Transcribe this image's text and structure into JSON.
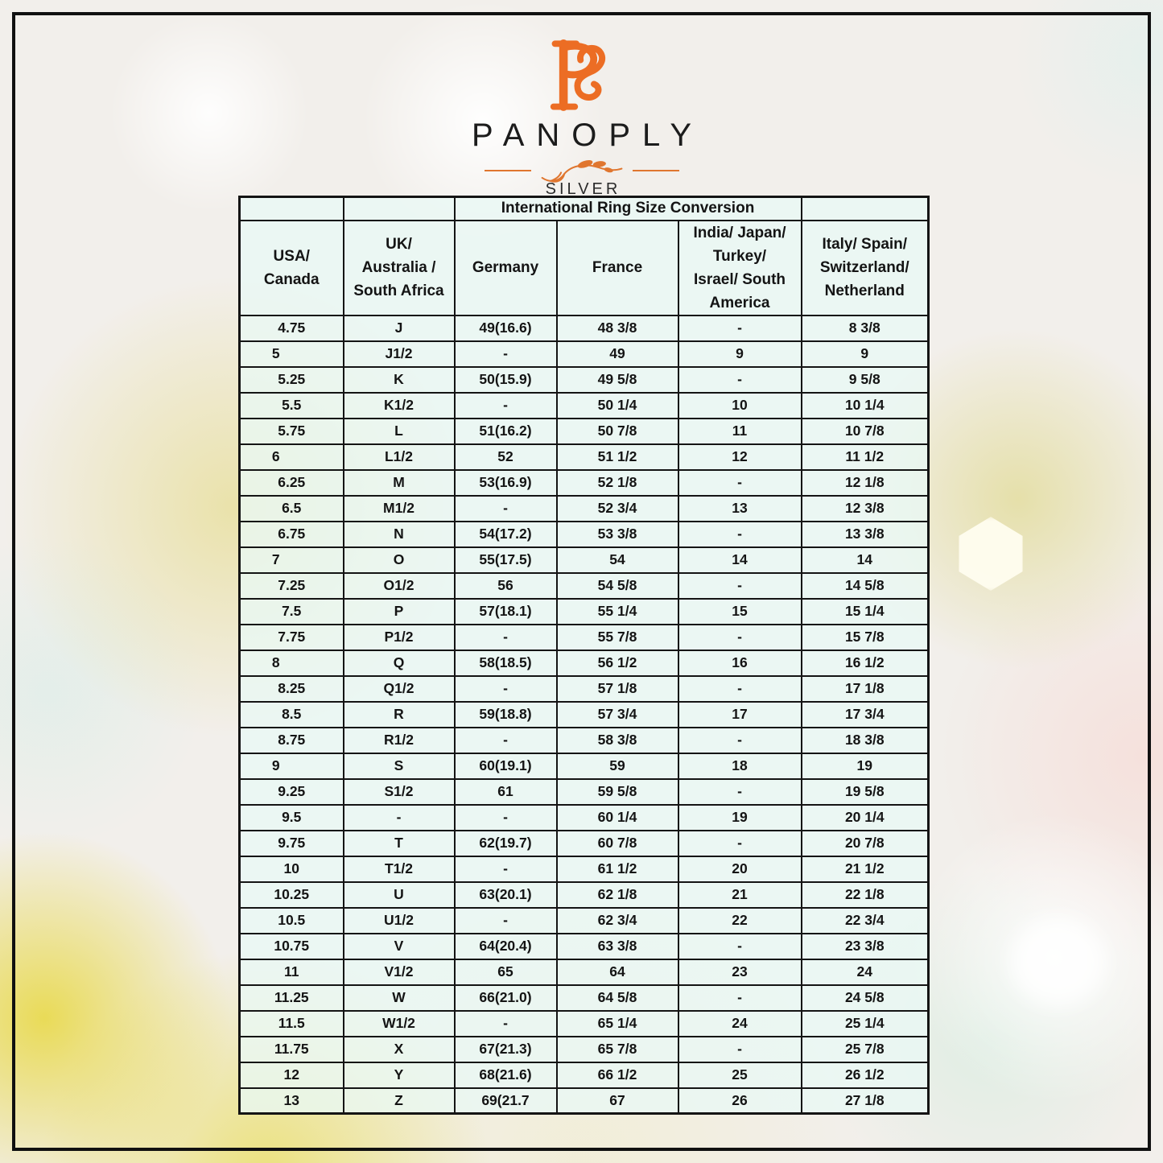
{
  "logo": {
    "monogram": "PS",
    "brand": "PANOPLY",
    "sub_brand": "SILVER",
    "accent_color": "#EC6D24"
  },
  "table": {
    "title": "International Ring Size Conversion",
    "columns": [
      "USA/\nCanada",
      "UK/\nAustralia /\nSouth Africa",
      "Germany",
      "France",
      "India/ Japan/\nTurkey/\nIsrael/ South\nAmerica",
      "Italy/ Spain/\nSwitzerland/\nNetherland"
    ],
    "rows": [
      [
        "4.75",
        "J",
        "49(16.6)",
        "48 3/8",
        "-",
        "8 3/8"
      ],
      [
        "5        ",
        "J1/2",
        "-",
        "49",
        "9",
        "9"
      ],
      [
        "5.25",
        "K",
        "50(15.9)",
        "49 5/8",
        "-",
        "9 5/8"
      ],
      [
        "5.5",
        "K1/2",
        "-",
        "50 1/4",
        "10",
        "10 1/4"
      ],
      [
        "5.75",
        "L",
        "51(16.2)",
        "50 7/8",
        "11",
        "10 7/8"
      ],
      [
        "6        ",
        "L1/2",
        "52",
        "51 1/2",
        "12",
        "11 1/2"
      ],
      [
        "6.25",
        "M",
        "53(16.9)",
        "52 1/8",
        "-",
        "12 1/8"
      ],
      [
        "6.5",
        "M1/2",
        "-",
        "52 3/4",
        "13",
        "12 3/8"
      ],
      [
        "6.75",
        "N",
        "54(17.2)",
        "53 3/8",
        "-",
        "13 3/8"
      ],
      [
        "7        ",
        "O",
        "55(17.5)",
        "54",
        "14",
        "14"
      ],
      [
        "7.25",
        "O1/2",
        "56",
        "54 5/8",
        "-",
        "14 5/8"
      ],
      [
        "7.5",
        "P",
        "57(18.1)",
        "55 1/4",
        "15",
        "15 1/4"
      ],
      [
        "7.75",
        "P1/2",
        "-",
        "55 7/8",
        "-",
        "15 7/8"
      ],
      [
        "8        ",
        "Q",
        "58(18.5)",
        "56 1/2",
        "16",
        "16 1/2"
      ],
      [
        "8.25",
        "Q1/2",
        "-",
        "57 1/8",
        "-",
        "17 1/8"
      ],
      [
        "8.5",
        "R",
        "59(18.8)",
        "57 3/4",
        "17",
        "17 3/4"
      ],
      [
        "8.75",
        "R1/2",
        "-",
        "58 3/8",
        "-",
        "18 3/8"
      ],
      [
        "9        ",
        "S",
        "60(19.1)",
        "59",
        "18",
        "19"
      ],
      [
        "9.25",
        "S1/2",
        "61",
        "59 5/8",
        "-",
        "19 5/8"
      ],
      [
        "9.5",
        "-",
        "-",
        "60 1/4",
        "19",
        "20 1/4"
      ],
      [
        "9.75",
        "T",
        "62(19.7)",
        "60 7/8",
        "-",
        "20 7/8"
      ],
      [
        "10",
        "T1/2",
        "-",
        "61 1/2",
        "20",
        "21 1/2"
      ],
      [
        "10.25",
        "U",
        "63(20.1)",
        "62 1/8",
        "21",
        "22 1/8"
      ],
      [
        "10.5",
        "U1/2",
        "-",
        "62 3/4",
        "22",
        "22 3/4"
      ],
      [
        "10.75",
        "V",
        "64(20.4)",
        "63 3/8",
        "-",
        "23 3/8"
      ],
      [
        "11",
        "V1/2",
        "65",
        "64",
        "23",
        "24"
      ],
      [
        "11.25",
        "W",
        "66(21.0)",
        "64 5/8",
        "-",
        "24 5/8"
      ],
      [
        "11.5",
        "W1/2",
        "-",
        "65 1/4",
        "24",
        "25 1/4"
      ],
      [
        "11.75",
        "X",
        "67(21.3)",
        "65 7/8",
        "-",
        "25 7/8"
      ],
      [
        "12",
        "Y",
        "68(21.6)",
        "66 1/2",
        "25",
        "26 1/2"
      ],
      [
        "13",
        "Z",
        "69(21.7",
        "67",
        "26",
        "27 1/8"
      ]
    ]
  }
}
